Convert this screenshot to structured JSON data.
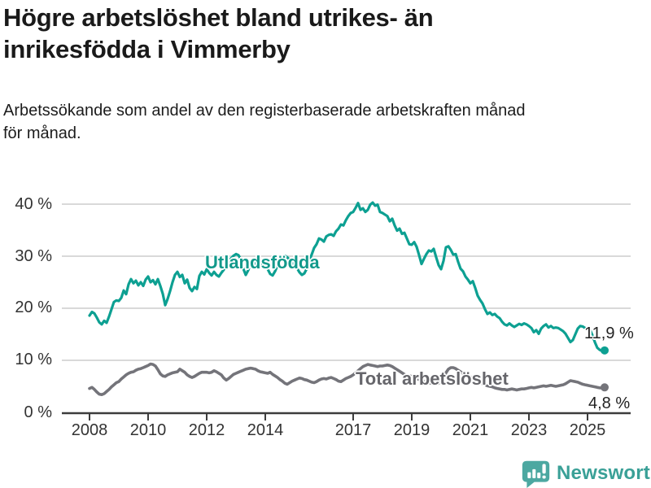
{
  "header": {
    "title_line1": "Högre arbetslöshet bland utrikes- än",
    "title_line2": "inrikesfödda i Vimmerby",
    "subtitle_line1": "Arbetssökande som andel av den registerbaserade arbetskraften månad",
    "subtitle_line2": "för månad."
  },
  "chart_data": {
    "type": "line",
    "x_start": "2008-01",
    "x_end": "2025-08",
    "x_step": "month",
    "x_tick_labels": [
      "2008",
      "2010",
      "2012",
      "2014",
      "2017",
      "2019",
      "2021",
      "2023",
      "2025"
    ],
    "x_tick_years": [
      2008,
      2010,
      2012,
      2014,
      2017,
      2019,
      2021,
      2023,
      2025
    ],
    "y_tick_labels": [
      "0 %",
      "10 %",
      "20 %",
      "30 %",
      "40 %"
    ],
    "y_ticks": [
      0,
      10,
      20,
      30,
      40
    ],
    "ylim": [
      0,
      42
    ],
    "grid": "horizontal",
    "legend_position": "inline-labels",
    "series": [
      {
        "name": "Utlandsfödda",
        "color": "#0da092",
        "label_color": "#12998b",
        "end_label": "11,9 %",
        "end_value": 11.9,
        "values": [
          18.6,
          19.3,
          19.0,
          18.2,
          17.3,
          16.9,
          17.6,
          17.2,
          18.4,
          19.8,
          21.2,
          21.5,
          21.4,
          22.0,
          23.4,
          22.7,
          24.6,
          25.6,
          24.8,
          25.3,
          24.4,
          25.0,
          24.3,
          25.5,
          26.1,
          25.0,
          25.4,
          24.6,
          25.6,
          24.3,
          22.8,
          20.6,
          21.8,
          23.3,
          25.0,
          26.4,
          27.0,
          26.0,
          26.4,
          24.8,
          25.5,
          23.9,
          23.3,
          24.1,
          23.7,
          26.2,
          27.0,
          26.5,
          27.5,
          26.8,
          26.3,
          27.0,
          26.4,
          26.1,
          26.8,
          27.4,
          28.1,
          28.8,
          29.6,
          30.1,
          30.4,
          30.2,
          29.4,
          27.6,
          26.4,
          27.3,
          28.6,
          29.1,
          28.6,
          28.1,
          28.4,
          28.7,
          28.2,
          27.5,
          26.6,
          26.3,
          27.1,
          28.2,
          29.2,
          29.8,
          30.1,
          29.8,
          29.3,
          28.8,
          28.3,
          27.7,
          26.9,
          26.4,
          26.7,
          27.6,
          29.1,
          30.3,
          31.6,
          32.3,
          33.4,
          33.2,
          32.8,
          33.8,
          34.1,
          34.2,
          33.9,
          34.8,
          35.3,
          36.1,
          35.9,
          36.9,
          37.7,
          38.3,
          38.5,
          39.3,
          40.2,
          38.9,
          39.2,
          38.5,
          38.9,
          39.9,
          40.3,
          39.7,
          39.9,
          38.5,
          38.3,
          38.0,
          37.7,
          36.7,
          37.2,
          35.9,
          34.9,
          35.3,
          34.3,
          34.5,
          33.4,
          32.3,
          32.2,
          32.7,
          31.8,
          30.2,
          28.5,
          29.5,
          30.4,
          31.1,
          30.9,
          31.4,
          29.8,
          28.3,
          27.5,
          29.1,
          31.7,
          31.9,
          31.2,
          30.3,
          30.4,
          28.9,
          27.6,
          27.1,
          26.1,
          25.5,
          24.8,
          25.2,
          23.9,
          22.4,
          21.6,
          20.9,
          19.8,
          18.9,
          19.2,
          18.7,
          18.9,
          18.4,
          18.1,
          17.4,
          16.9,
          16.7,
          17.1,
          16.7,
          16.4,
          16.7,
          17.0,
          16.8,
          17.1,
          16.9,
          16.6,
          16.2,
          15.4,
          15.8,
          15.1,
          16.1,
          16.6,
          16.9,
          16.3,
          16.6,
          16.2,
          16.3,
          16.2,
          15.9,
          15.6,
          15.1,
          14.3,
          13.5,
          13.9,
          15.0,
          16.1,
          16.6,
          16.5,
          16.2,
          16.1,
          15.9,
          14.8,
          13.5,
          12.4,
          12.0,
          11.8,
          11.9
        ]
      },
      {
        "name": "Total arbetslöshet",
        "color": "#74747a",
        "label_color": "#66666b",
        "end_label": "4,8 %",
        "end_value": 4.8,
        "values": [
          4.6,
          4.8,
          4.4,
          3.9,
          3.5,
          3.4,
          3.6,
          4.0,
          4.4,
          4.9,
          5.3,
          5.7,
          5.9,
          6.4,
          6.8,
          7.2,
          7.5,
          7.7,
          7.8,
          8.1,
          8.3,
          8.4,
          8.6,
          8.8,
          9.0,
          9.3,
          9.2,
          8.9,
          8.2,
          7.4,
          7.0,
          6.9,
          7.2,
          7.4,
          7.6,
          7.7,
          7.8,
          8.3,
          8.0,
          7.7,
          7.2,
          6.9,
          6.7,
          6.9,
          7.2,
          7.5,
          7.7,
          7.7,
          7.7,
          7.6,
          7.7,
          8.0,
          7.8,
          7.5,
          7.2,
          6.6,
          6.2,
          6.5,
          6.9,
          7.3,
          7.5,
          7.7,
          7.9,
          8.1,
          8.3,
          8.4,
          8.5,
          8.4,
          8.3,
          8.0,
          7.8,
          7.7,
          7.6,
          7.5,
          7.7,
          7.3,
          7.0,
          6.7,
          6.3,
          6.0,
          5.6,
          5.4,
          5.7,
          6.0,
          6.2,
          6.4,
          6.6,
          6.5,
          6.3,
          6.2,
          6.0,
          5.8,
          5.7,
          5.9,
          6.2,
          6.4,
          6.5,
          6.4,
          6.6,
          6.7,
          6.5,
          6.3,
          6.0,
          5.9,
          6.2,
          6.5,
          6.7,
          6.9,
          7.2,
          7.6,
          8.0,
          8.4,
          8.8,
          9.0,
          9.2,
          9.1,
          9.0,
          8.9,
          8.8,
          8.9,
          8.9,
          9.0,
          9.1,
          9.0,
          8.8,
          8.5,
          8.2,
          7.9,
          7.6,
          7.3,
          7.1,
          7.0,
          6.9,
          6.7,
          6.5,
          6.3,
          6.2,
          6.0,
          5.8,
          5.7,
          5.6,
          5.5,
          5.4,
          5.6,
          6.0,
          6.6,
          7.6,
          8.3,
          8.6,
          8.6,
          8.4,
          8.1,
          7.8,
          7.5,
          7.2,
          7.0,
          6.8,
          6.6,
          6.3,
          6.0,
          5.8,
          5.5,
          5.3,
          5.1,
          5.0,
          4.9,
          4.7,
          4.6,
          4.5,
          4.4,
          4.4,
          4.3,
          4.4,
          4.5,
          4.4,
          4.3,
          4.4,
          4.5,
          4.5,
          4.6,
          4.7,
          4.8,
          4.7,
          4.8,
          4.9,
          5.0,
          5.1,
          5.0,
          5.1,
          5.2,
          5.1,
          5.0,
          5.1,
          5.2,
          5.3,
          5.5,
          5.8,
          6.1,
          6.0,
          5.9,
          5.8,
          5.6,
          5.4,
          5.3,
          5.2,
          5.1,
          5.0,
          4.9,
          4.8,
          4.7,
          4.7,
          4.8
        ]
      }
    ]
  },
  "footer": {
    "brand": "Newsworthy"
  }
}
